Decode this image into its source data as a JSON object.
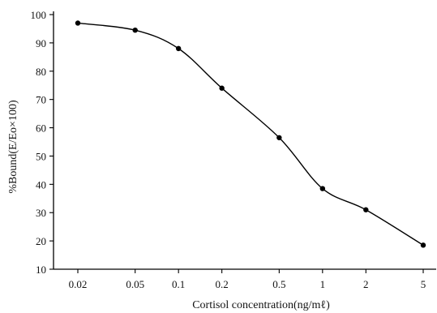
{
  "chart_data": {
    "type": "line",
    "title": "",
    "xlabel": "Cortisol concentration(ng/mℓ)",
    "ylabel": "%Bound(E/Eo×100)",
    "x_scale": "log",
    "categories": [
      "0.02",
      "0.05",
      "0.1",
      "0.2",
      "0.5",
      "1",
      "2",
      "5"
    ],
    "series": [
      {
        "values": [
          97,
          94.5,
          88,
          74,
          56.5,
          38.5,
          31,
          18.5
        ]
      }
    ],
    "ylim": [
      10,
      100
    ],
    "yticks": [
      10,
      20,
      30,
      40,
      50,
      60,
      70,
      80,
      90,
      100
    ],
    "grid": false,
    "line_color": "#000000",
    "marker_color": "#000000"
  }
}
